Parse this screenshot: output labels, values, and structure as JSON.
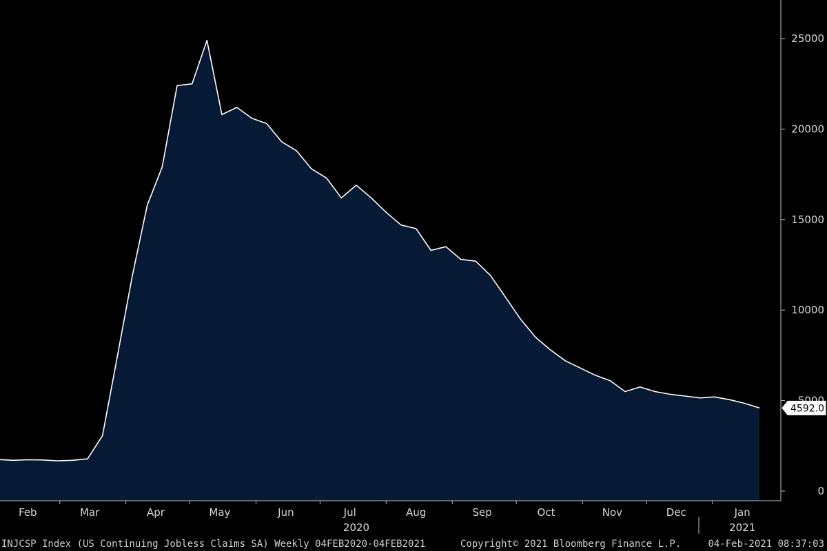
{
  "chart_data": {
    "type": "area",
    "title": "",
    "xlabel": "",
    "ylabel": "",
    "x_range": [
      "2020-02-01",
      "2021-02-04"
    ],
    "ylim": [
      0,
      28000
    ],
    "y_ticks": [
      0,
      5000,
      10000,
      15000,
      20000,
      25000
    ],
    "y_tick_labels": [
      "0",
      "5000",
      "10000",
      "15000",
      "20000",
      "25000"
    ],
    "y_axis_side": "right",
    "grid": false,
    "legend": "none",
    "month_labels": [
      {
        "label": "Feb",
        "date": "2020-02-15"
      },
      {
        "label": "Mar",
        "date": "2020-03-15"
      },
      {
        "label": "Apr",
        "date": "2020-04-15"
      },
      {
        "label": "May",
        "date": "2020-05-15"
      },
      {
        "label": "Jun",
        "date": "2020-06-15"
      },
      {
        "label": "Jul",
        "date": "2020-07-15"
      },
      {
        "label": "Aug",
        "date": "2020-08-15"
      },
      {
        "label": "Sep",
        "date": "2020-09-15"
      },
      {
        "label": "Oct",
        "date": "2020-10-15"
      },
      {
        "label": "Nov",
        "date": "2020-11-15"
      },
      {
        "label": "Dec",
        "date": "2020-12-15"
      },
      {
        "label": "Jan",
        "date": "2021-01-15"
      }
    ],
    "year_labels": [
      {
        "label": "2020",
        "date": "2020-07-18"
      },
      {
        "label": "2021",
        "date": "2021-01-15"
      }
    ],
    "last_value_label": "4592.0",
    "series": [
      {
        "x": [
          "2020-02-01",
          "2020-02-08",
          "2020-02-15",
          "2020-02-22",
          "2020-02-29",
          "2020-03-07",
          "2020-03-14",
          "2020-03-21",
          "2020-03-28",
          "2020-04-04",
          "2020-04-11",
          "2020-04-18",
          "2020-04-25",
          "2020-05-02",
          "2020-05-09",
          "2020-05-16",
          "2020-05-23",
          "2020-05-30",
          "2020-06-06",
          "2020-06-13",
          "2020-06-20",
          "2020-06-27",
          "2020-07-04",
          "2020-07-11",
          "2020-07-18",
          "2020-07-25",
          "2020-08-01",
          "2020-08-08",
          "2020-08-15",
          "2020-08-22",
          "2020-08-29",
          "2020-09-05",
          "2020-09-12",
          "2020-09-19",
          "2020-09-26",
          "2020-10-03",
          "2020-10-10",
          "2020-10-17",
          "2020-10-24",
          "2020-10-31",
          "2020-11-07",
          "2020-11-14",
          "2020-11-21",
          "2020-11-28",
          "2020-12-05",
          "2020-12-12",
          "2020-12-19",
          "2020-12-26",
          "2021-01-02",
          "2021-01-09",
          "2021-01-16",
          "2021-01-23"
        ],
        "y": [
          1740,
          1700,
          1730,
          1720,
          1670,
          1700,
          1780,
          3060,
          7450,
          11900,
          15800,
          17900,
          22400,
          22500,
          24900,
          20800,
          21200,
          20600,
          20300,
          19300,
          18800,
          17800,
          17300,
          16200,
          16900,
          16200,
          15400,
          14700,
          14500,
          13300,
          13500,
          12800,
          12700,
          11900,
          10700,
          9500,
          8500,
          7800,
          7200,
          6800,
          6400,
          6100,
          5500,
          5750,
          5500,
          5350,
          5250,
          5150,
          5200,
          5050,
          4850,
          4592
        ]
      }
    ]
  },
  "footer": {
    "left": "INJCSP Index (US Continuing Jobless Claims SA)  Weekly 04FEB2020-04FEB2021",
    "middle": "Copyright© 2021 Bloomberg Finance L.P.",
    "right": "04-Feb-2021 08:37:03"
  },
  "colors": {
    "background": "#000000",
    "area_fill": "#061a36",
    "area_line": "#ffffff",
    "axis": "#bfbfbf",
    "text": "#d9d9d9"
  }
}
